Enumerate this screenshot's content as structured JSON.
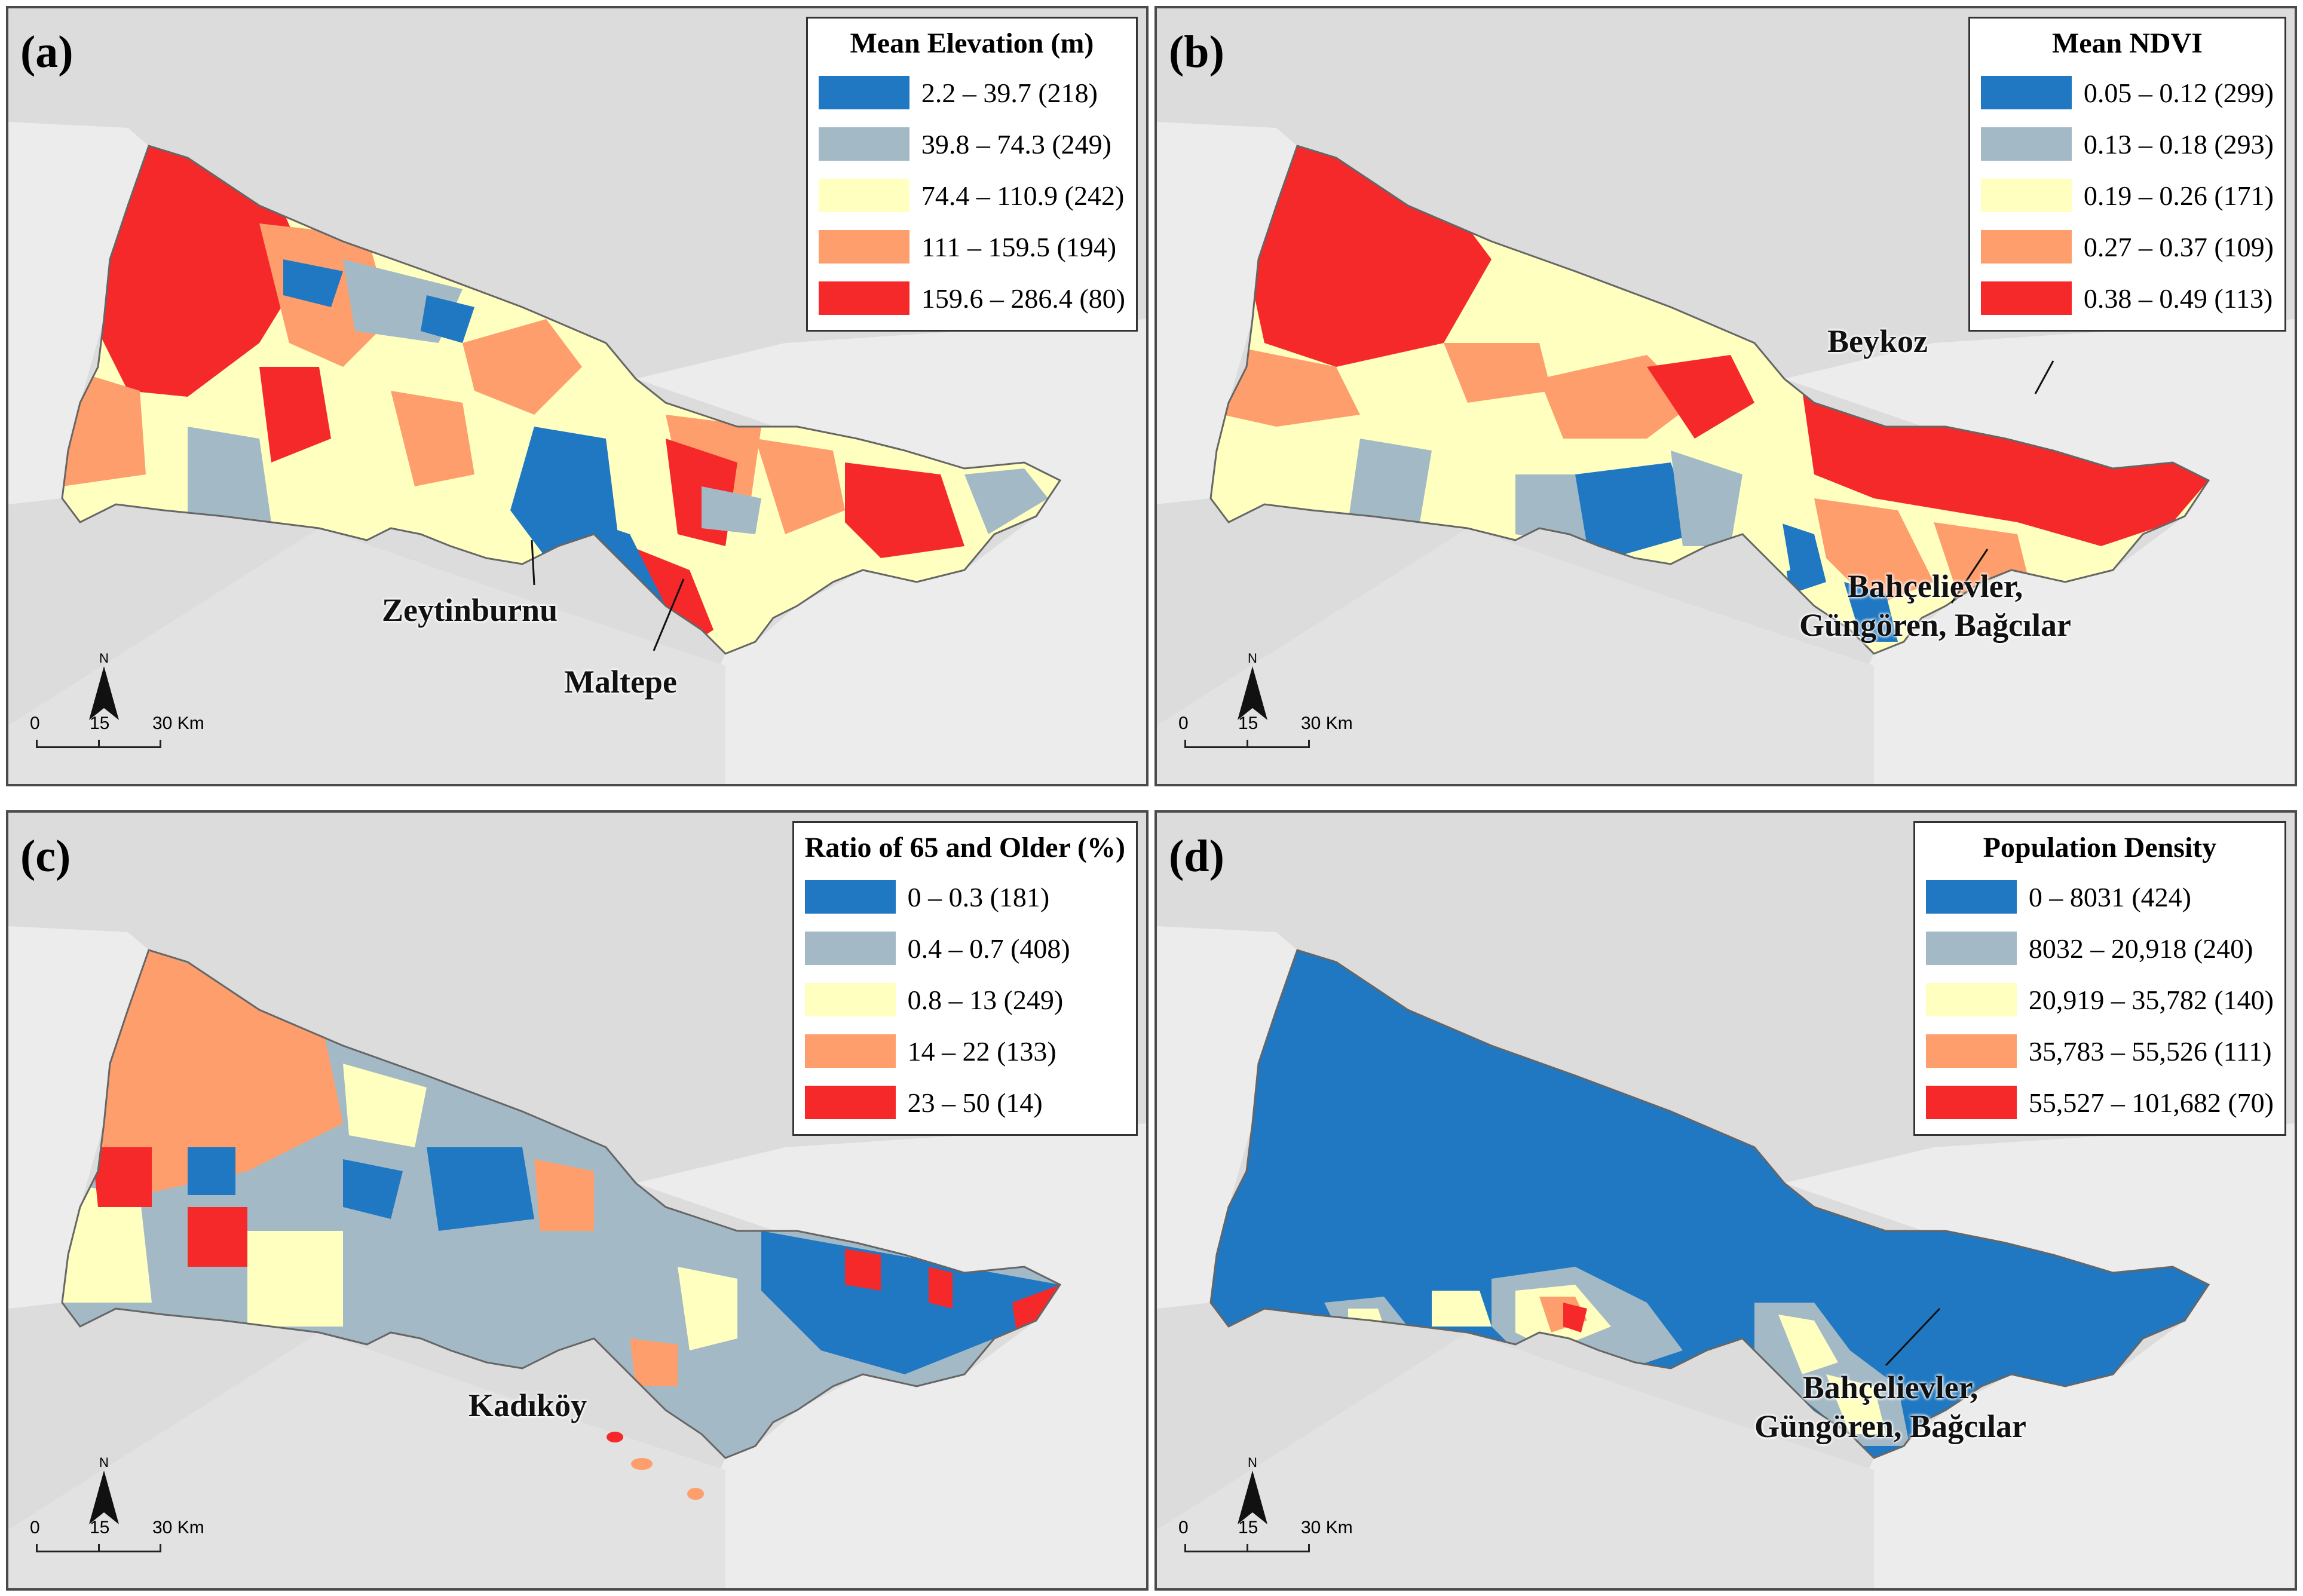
{
  "panels": [
    {
      "label": "(a)",
      "legend_title": "Mean Elevation (m)",
      "classes": [
        {
          "label": "2.2 – 39.7 (218)",
          "color": "#1f78c1"
        },
        {
          "label": "39.8 – 74.3 (249)",
          "color": "#a3b9c6"
        },
        {
          "label": "74.4 – 110.9 (242)",
          "color": "#ffffc0"
        },
        {
          "label": "111 – 159.5 (194)",
          "color": "#fe9e6c"
        },
        {
          "label": "159.6 – 286.4 (80)",
          "color": "#f6292a"
        }
      ],
      "annotations": [
        "Zeytinburnu",
        "Maltepe"
      ]
    },
    {
      "label": "(b)",
      "legend_title": "Mean NDVI",
      "classes": [
        {
          "label": "0.05 – 0.12 (299)",
          "color": "#1f78c1"
        },
        {
          "label": "0.13 – 0.18 (293)",
          "color": "#a3b9c6"
        },
        {
          "label": "0.19 – 0.26 (171)",
          "color": "#ffffc0"
        },
        {
          "label": "0.27 – 0.37 (109)",
          "color": "#fe9e6c"
        },
        {
          "label": "0.38 – 0.49 (113)",
          "color": "#f6292a"
        }
      ],
      "annotations": [
        "Beykoz",
        "Bahçelievler,",
        "Güngören, Bağcılar"
      ]
    },
    {
      "label": "(c)",
      "legend_title": "Ratio of 65 and Older (%)",
      "classes": [
        {
          "label": "0 – 0.3 (181)",
          "color": "#1f78c1"
        },
        {
          "label": "0.4 – 0.7 (408)",
          "color": "#a3b9c6"
        },
        {
          "label": "0.8 – 13 (249)",
          "color": "#ffffc0"
        },
        {
          "label": "14 – 22 (133)",
          "color": "#fe9e6c"
        },
        {
          "label": "23 – 50 (14)",
          "color": "#f6292a"
        }
      ],
      "annotations": [
        "Kadıköy"
      ]
    },
    {
      "label": "(d)",
      "legend_title": "Population Density",
      "classes": [
        {
          "label": "0 – 8031 (424)",
          "color": "#1f78c1"
        },
        {
          "label": "8032 – 20,918 (240)",
          "color": "#a3b9c6"
        },
        {
          "label": "20,919 – 35,782 (140)",
          "color": "#ffffc0"
        },
        {
          "label": "35,783 – 55,526 (111)",
          "color": "#fe9e6c"
        },
        {
          "label": "55,527 – 101,682 (70)",
          "color": "#f6292a"
        }
      ],
      "annotations": [
        "Bahçelievler,",
        "Güngören, Bağcılar"
      ]
    }
  ],
  "north_label": "N",
  "scale": {
    "zero": "0",
    "mid": "15",
    "end": "30 Km"
  },
  "colors": {
    "sea": "#dcdcdc",
    "land": "#f0f0f0",
    "outline": "#666666"
  }
}
